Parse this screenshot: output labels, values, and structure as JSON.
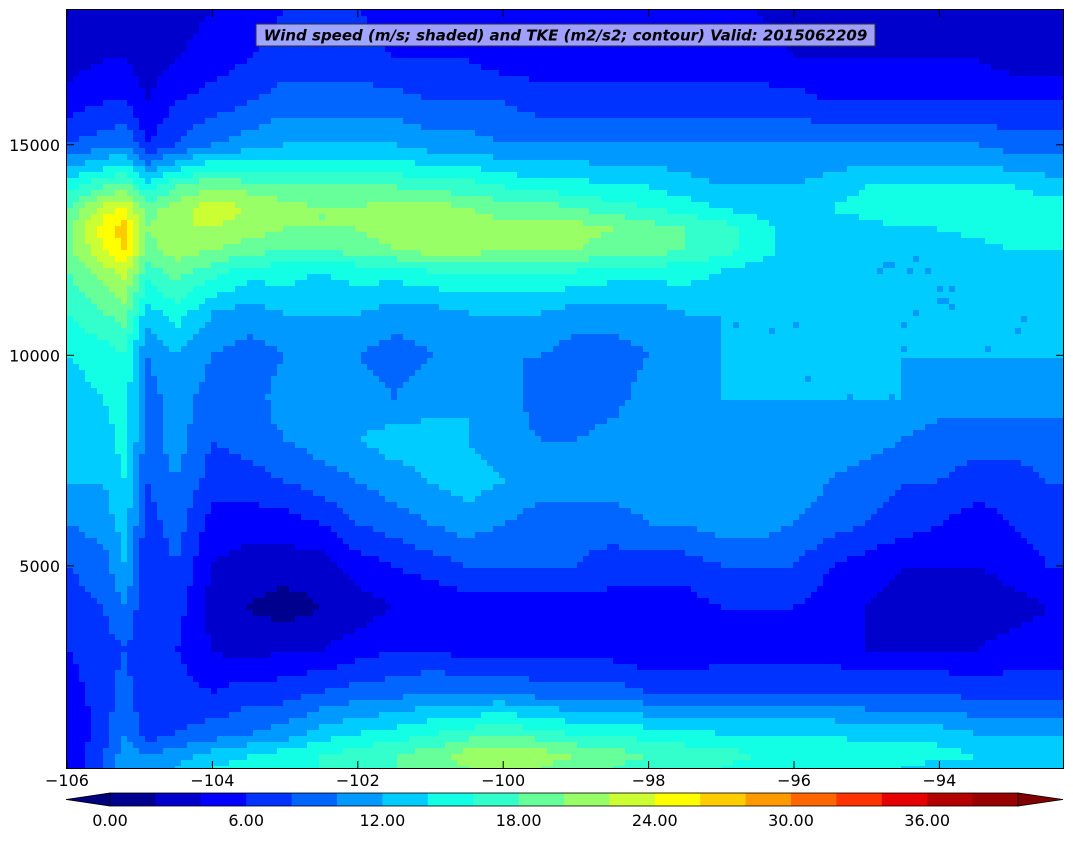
{
  "chart_data": {
    "type": "heatmap",
    "title": "Wind speed (m/s; shaded) and TKE (m2/s2; contour) Valid: 2015062209",
    "xlabel": "",
    "ylabel": "",
    "xlim": [
      -106,
      -92.3
    ],
    "ylim": [
      200,
      18200
    ],
    "x_ticks": [
      -106,
      -104,
      -102,
      -100,
      -98,
      -96,
      -94
    ],
    "x_tick_labels": [
      "−106",
      "−104",
      "−102",
      "−100",
      "−98",
      "−96",
      "−94"
    ],
    "y_ticks": [
      5000,
      10000,
      15000
    ],
    "y_tick_labels": [
      "5000",
      "10000",
      "15000"
    ],
    "colormap": "jet",
    "colorbar": {
      "min": 0,
      "max": 40,
      "step": 2,
      "extend": "both",
      "ticks": [
        0,
        6,
        12,
        18,
        24,
        30,
        36
      ],
      "tick_labels": [
        "0.00",
        "6.00",
        "12.00",
        "18.00",
        "24.00",
        "30.00",
        "36.00"
      ],
      "colors": [
        "#00008f",
        "#0000cc",
        "#0000ff",
        "#0033ff",
        "#0066ff",
        "#0099ff",
        "#00ccff",
        "#12ffe6",
        "#33ffcc",
        "#66ff99",
        "#99ff66",
        "#ccff33",
        "#ffff00",
        "#ffcc00",
        "#ff9900",
        "#ff6600",
        "#ff3300",
        "#e60000",
        "#b30000",
        "#990000"
      ],
      "under_color": "#00007f",
      "over_color": "#800000"
    },
    "x": [
      -106,
      -105.5,
      -105.2,
      -104.9,
      -104.5,
      -104,
      -103.5,
      -103,
      -102.5,
      -102,
      -101.5,
      -101,
      -100.5,
      -100,
      -99.5,
      -99,
      -98.5,
      -98,
      -97.5,
      -97,
      -96.5,
      -96,
      -95.5,
      -95,
      -94.5,
      -94,
      -93.5,
      -93,
      -92.5
    ],
    "y": [
      200,
      500,
      1000,
      2000,
      3000,
      4000,
      5000,
      6000,
      7000,
      8000,
      9000,
      10000,
      11000,
      12000,
      12500,
      13000,
      13500,
      14000,
      15000,
      16000,
      17000,
      18200
    ],
    "z": [
      [
        4,
        8,
        12,
        10,
        12,
        14,
        15,
        15,
        16,
        17,
        18,
        19,
        20,
        20,
        20,
        19,
        18,
        17,
        16,
        16,
        15,
        15,
        14,
        14,
        14,
        13,
        13,
        12,
        12
      ],
      [
        4,
        8,
        11,
        10,
        11,
        13,
        14,
        15,
        16,
        17,
        18,
        19,
        21,
        22,
        21,
        20,
        19,
        18,
        17,
        17,
        16,
        16,
        16,
        15,
        15,
        15,
        14,
        14,
        13
      ],
      [
        4,
        7,
        10,
        7,
        8,
        9,
        10,
        11,
        13,
        14,
        15,
        16,
        17,
        18,
        17,
        16,
        16,
        15,
        15,
        14,
        14,
        14,
        14,
        13,
        13,
        13,
        12,
        12,
        12
      ],
      [
        5,
        7,
        9,
        6,
        7,
        6,
        7,
        7,
        8,
        9,
        9,
        10,
        10,
        10,
        9,
        9,
        9,
        8,
        8,
        8,
        8,
        8,
        8,
        8,
        8,
        8,
        7,
        7,
        7
      ],
      [
        6,
        7,
        8,
        6,
        6,
        4,
        3,
        4,
        4,
        5,
        6,
        6,
        5,
        5,
        5,
        5,
        5,
        4,
        4,
        5,
        5,
        5,
        5,
        4,
        4,
        4,
        4,
        5,
        5
      ],
      [
        7,
        8,
        10,
        6,
        7,
        3,
        2,
        1,
        2,
        3,
        4,
        4,
        5,
        5,
        5,
        5,
        5,
        5,
        5,
        6,
        6,
        6,
        5,
        4,
        3,
        2,
        2,
        3,
        4
      ],
      [
        8,
        9,
        12,
        6,
        8,
        4,
        3,
        3,
        3,
        5,
        6,
        7,
        8,
        8,
        8,
        8,
        7,
        7,
        7,
        8,
        8,
        8,
        6,
        5,
        4,
        4,
        4,
        5,
        6
      ],
      [
        10,
        11,
        13,
        7,
        9,
        5,
        5,
        5,
        6,
        8,
        9,
        10,
        11,
        10,
        9,
        9,
        9,
        10,
        10,
        11,
        11,
        10,
        9,
        8,
        7,
        6,
        5,
        6,
        7
      ],
      [
        12,
        12,
        14,
        8,
        10,
        7,
        7,
        8,
        9,
        10,
        11,
        12,
        13,
        12,
        11,
        11,
        11,
        11,
        11,
        11,
        11,
        11,
        10,
        9,
        8,
        8,
        7,
        7,
        8
      ],
      [
        13,
        13,
        15,
        9,
        11,
        8,
        9,
        10,
        11,
        12,
        13,
        13,
        12,
        11,
        10,
        10,
        11,
        12,
        12,
        11,
        11,
        11,
        11,
        11,
        10,
        9,
        9,
        9,
        9
      ],
      [
        13,
        14,
        15,
        9,
        11,
        9,
        9,
        11,
        12,
        11,
        10,
        11,
        12,
        11,
        9,
        8,
        9,
        11,
        12,
        12,
        12,
        12,
        12,
        12,
        12,
        11,
        11,
        11,
        11
      ],
      [
        14,
        15,
        16,
        10,
        12,
        10,
        9,
        10,
        10,
        10,
        9,
        10,
        11,
        10,
        10,
        9,
        9,
        10,
        11,
        12,
        12,
        12,
        12,
        12,
        12,
        12,
        12,
        12,
        12
      ],
      [
        16,
        18,
        19,
        13,
        15,
        12,
        11,
        12,
        12,
        12,
        11,
        11,
        12,
        12,
        12,
        11,
        11,
        11,
        12,
        12,
        12,
        12,
        12,
        12,
        12,
        12,
        12,
        12,
        12
      ],
      [
        18,
        21,
        23,
        17,
        19,
        17,
        15,
        15,
        14,
        15,
        15,
        16,
        16,
        16,
        16,
        16,
        15,
        15,
        15,
        14,
        13,
        13,
        13,
        12,
        12,
        12,
        12,
        13,
        13
      ],
      [
        19,
        24,
        26,
        19,
        21,
        20,
        19,
        18,
        18,
        19,
        20,
        21,
        21,
        20,
        20,
        20,
        19,
        19,
        18,
        17,
        15,
        13,
        12,
        12,
        12,
        12,
        13,
        14,
        14
      ],
      [
        19,
        25,
        27,
        20,
        22,
        22,
        21,
        20,
        20,
        20,
        21,
        22,
        21,
        21,
        21,
        21,
        20,
        19,
        18,
        17,
        15,
        13,
        13,
        13,
        14,
        14,
        15,
        15,
        15
      ],
      [
        18,
        23,
        24,
        19,
        21,
        23,
        22,
        21,
        20,
        20,
        21,
        21,
        20,
        19,
        19,
        18,
        17,
        16,
        15,
        14,
        13,
        13,
        14,
        15,
        16,
        16,
        16,
        16,
        15
      ],
      [
        15,
        18,
        19,
        15,
        18,
        20,
        19,
        18,
        18,
        18,
        18,
        17,
        17,
        16,
        15,
        15,
        14,
        14,
        13,
        12,
        12,
        12,
        13,
        14,
        14,
        14,
        14,
        14,
        13
      ],
      [
        8,
        9,
        10,
        6,
        8,
        10,
        11,
        12,
        12,
        12,
        12,
        11,
        11,
        10,
        10,
        10,
        10,
        10,
        10,
        10,
        10,
        10,
        10,
        10,
        10,
        10,
        10,
        9,
        9
      ],
      [
        5,
        6,
        6,
        4,
        6,
        7,
        8,
        9,
        9,
        9,
        9,
        8,
        8,
        8,
        7,
        7,
        7,
        7,
        7,
        7,
        7,
        7,
        6,
        6,
        6,
        6,
        6,
        6,
        6
      ],
      [
        3,
        4,
        4,
        3,
        4,
        5,
        6,
        7,
        7,
        7,
        6,
        6,
        6,
        5,
        5,
        5,
        5,
        5,
        5,
        5,
        5,
        4,
        4,
        4,
        4,
        4,
        4,
        3,
        3
      ],
      [
        2,
        3,
        3,
        3,
        3,
        4,
        5,
        6,
        6,
        6,
        5,
        5,
        5,
        5,
        4,
        4,
        4,
        4,
        4,
        4,
        4,
        3,
        3,
        3,
        3,
        3,
        3,
        2,
        2
      ]
    ]
  }
}
